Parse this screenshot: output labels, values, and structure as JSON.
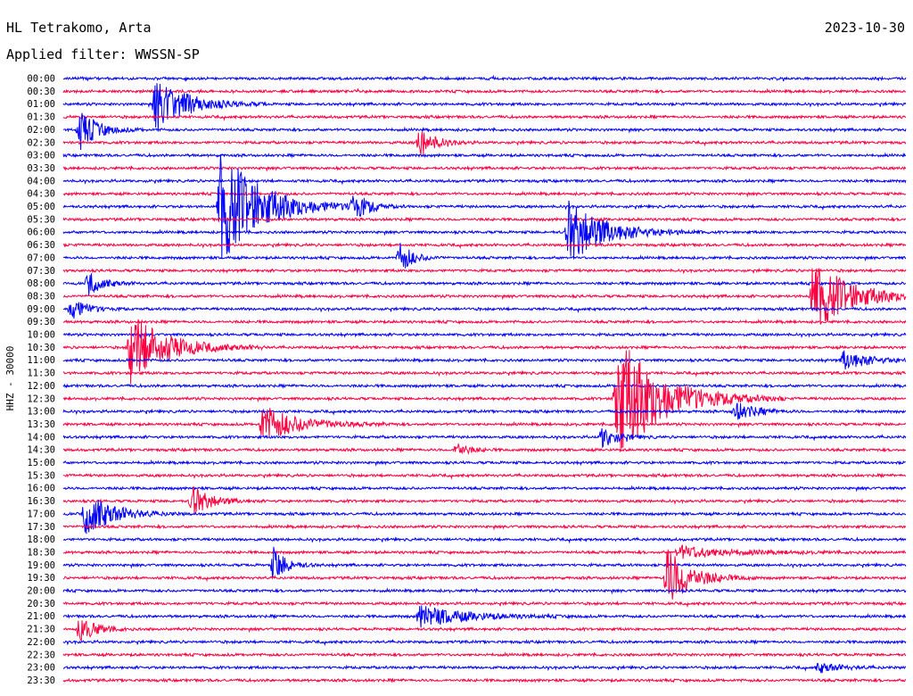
{
  "header": {
    "station": "HL Tetrakomo, Arta",
    "date": "2023-10-30",
    "filter": "Applied filter: WWSSN-SP"
  },
  "chart_data": {
    "type": "line",
    "title": "HL Tetrakomo, Arta",
    "subtitle": "Applied filter: WWSSN-SP",
    "date": "2023-10-30",
    "ylabel": "HHZ - 30000",
    "xlabel": "",
    "grid": false,
    "colors": [
      "#0000ff",
      "#ff0040"
    ],
    "rows": [
      "00:00",
      "00:30",
      "01:00",
      "01:30",
      "02:00",
      "02:30",
      "03:00",
      "03:30",
      "04:00",
      "04:30",
      "05:00",
      "05:30",
      "06:00",
      "06:30",
      "07:00",
      "07:30",
      "08:00",
      "08:30",
      "09:00",
      "09:30",
      "10:00",
      "10:30",
      "11:00",
      "11:30",
      "12:00",
      "12:30",
      "13:00",
      "13:30",
      "14:00",
      "14:30",
      "15:00",
      "15:30",
      "16:00",
      "16:30",
      "17:00",
      "17:30",
      "18:00",
      "18:30",
      "19:00",
      "19:30",
      "20:00",
      "20:30",
      "21:00",
      "21:30",
      "22:00",
      "22:30",
      "23:00",
      "23:30"
    ],
    "minutes_per_row": 30,
    "events": [
      {
        "row": 2,
        "minute": 3.3,
        "amplitude": 2.3,
        "duration": 1.0
      },
      {
        "row": 4,
        "minute": 0.6,
        "amplitude": 1.6,
        "duration": 0.6
      },
      {
        "row": 5,
        "minute": 12.7,
        "amplitude": 1.2,
        "duration": 0.5
      },
      {
        "row": 10,
        "minute": 5.6,
        "amplitude": 4.5,
        "duration": 1.4
      },
      {
        "row": 10,
        "minute": 10.3,
        "amplitude": 1.0,
        "duration": 0.5
      },
      {
        "row": 12,
        "minute": 18.0,
        "amplitude": 2.5,
        "duration": 1.2
      },
      {
        "row": 14,
        "minute": 12.0,
        "amplitude": 1.3,
        "duration": 0.4
      },
      {
        "row": 16,
        "minute": 0.9,
        "amplitude": 0.9,
        "duration": 0.5
      },
      {
        "row": 17,
        "minute": 26.7,
        "amplitude": 2.8,
        "duration": 1.3
      },
      {
        "row": 18,
        "minute": 0.3,
        "amplitude": 1.0,
        "duration": 0.5
      },
      {
        "row": 21,
        "minute": 2.4,
        "amplitude": 2.8,
        "duration": 1.2
      },
      {
        "row": 22,
        "minute": 27.8,
        "amplitude": 0.8,
        "duration": 0.8
      },
      {
        "row": 25,
        "minute": 19.7,
        "amplitude": 5.0,
        "duration": 1.5
      },
      {
        "row": 26,
        "minute": 23.9,
        "amplitude": 0.9,
        "duration": 0.6
      },
      {
        "row": 27,
        "minute": 7.1,
        "amplitude": 1.5,
        "duration": 1.2
      },
      {
        "row": 28,
        "minute": 19.2,
        "amplitude": 0.9,
        "duration": 0.5
      },
      {
        "row": 29,
        "minute": 14.0,
        "amplitude": 0.6,
        "duration": 0.4
      },
      {
        "row": 33,
        "minute": 4.6,
        "amplitude": 1.2,
        "duration": 0.6
      },
      {
        "row": 34,
        "minute": 0.8,
        "amplitude": 1.8,
        "duration": 0.9
      },
      {
        "row": 37,
        "minute": 21.9,
        "amplitude": 0.5,
        "duration": 1.8
      },
      {
        "row": 38,
        "minute": 7.5,
        "amplitude": 1.5,
        "duration": 0.4
      },
      {
        "row": 39,
        "minute": 21.5,
        "amplitude": 2.4,
        "duration": 0.8
      },
      {
        "row": 42,
        "minute": 12.7,
        "amplitude": 0.9,
        "duration": 1.5
      },
      {
        "row": 43,
        "minute": 0.6,
        "amplitude": 1.1,
        "duration": 0.5
      },
      {
        "row": 46,
        "minute": 26.9,
        "amplitude": 0.4,
        "duration": 0.7
      }
    ]
  }
}
